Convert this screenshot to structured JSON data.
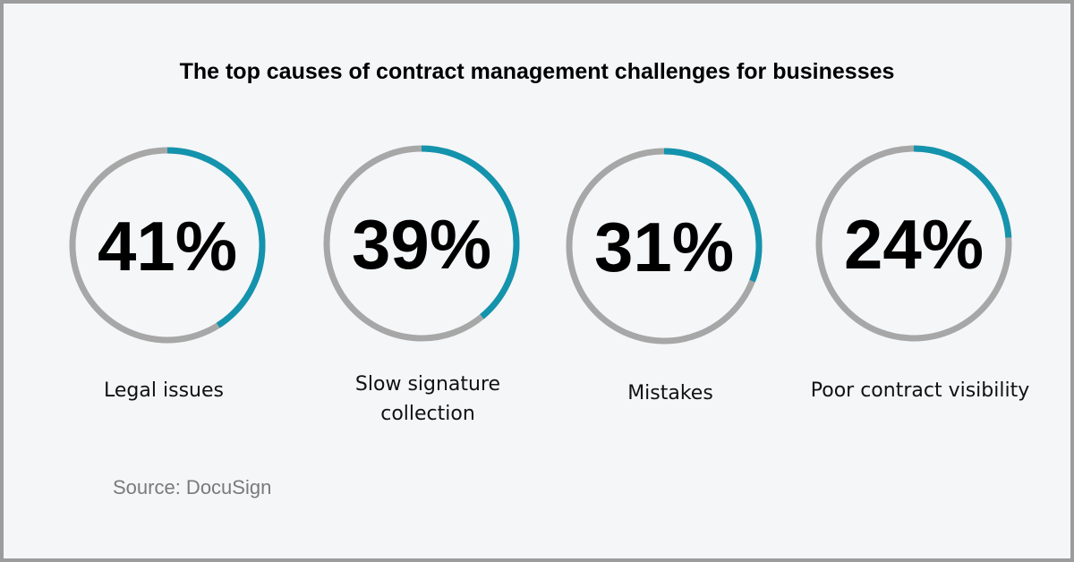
{
  "title": "The top causes of contract management challenges for businesses",
  "source": "Source: DocuSign",
  "colors": {
    "accent": "#1493ad",
    "track": "#a7a7a7",
    "background": "#f4f6f8"
  },
  "chart_data": {
    "type": "donut",
    "title": "The top causes of contract management challenges for businesses",
    "items": [
      {
        "label_lines": [
          "Legal issues"
        ],
        "value": 41,
        "display": "41%"
      },
      {
        "label_lines": [
          "Slow signature",
          "collection"
        ],
        "value": 39,
        "display": "39%"
      },
      {
        "label_lines": [
          "Mistakes"
        ],
        "value": 31,
        "display": "31%"
      },
      {
        "label_lines": [
          "Poor contract visibility"
        ],
        "value": 24,
        "display": "24%"
      }
    ],
    "max": 100
  }
}
